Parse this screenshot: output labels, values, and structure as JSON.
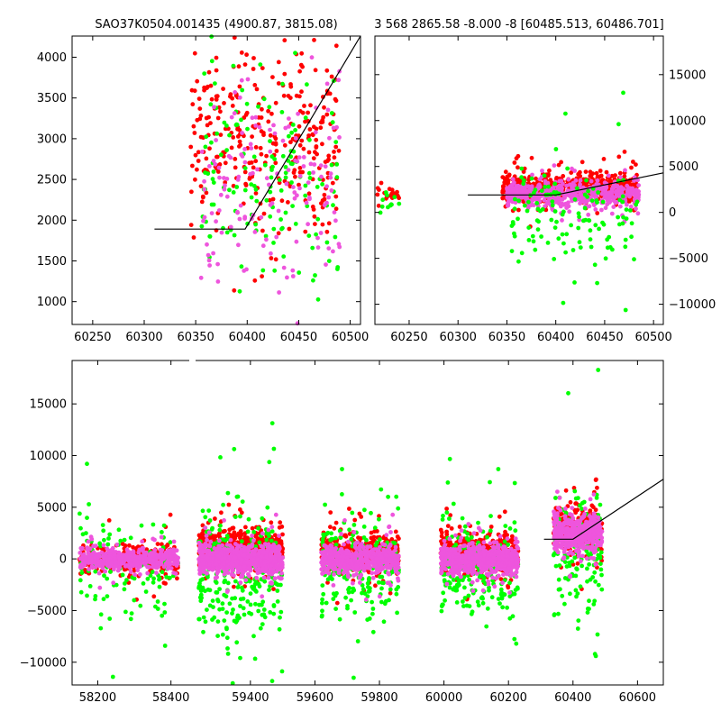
{
  "colors": {
    "background": "#ffffff",
    "axes": "#000000",
    "model_line": "#000000",
    "series_red": "#ff0000",
    "series_green": "#00ff00",
    "series_magenta": "#ee55dd"
  },
  "chart_data": [
    {
      "type": "scatter",
      "panel": "top-left",
      "title": "SAO37K0504.001435 (4900.87, 3815.08)",
      "xlabel": "",
      "ylabel": "",
      "xlim": [
        60230,
        60510
      ],
      "ylim": [
        720,
        4260
      ],
      "x_ticks": [
        60250,
        60300,
        60350,
        60400,
        60450,
        60500
      ],
      "y_ticks": [
        1000,
        1500,
        2000,
        2500,
        3000,
        3500,
        4000
      ],
      "y_axis_side": "left",
      "model_line": {
        "x": [
          60310,
          60398,
          60510
        ],
        "y": [
          1890,
          1890,
          4260
        ]
      },
      "series": [
        {
          "color": "#ff0000",
          "x_range": [
            60345,
            60490
          ],
          "y_center": 3000,
          "y_spread": 900,
          "n": 320
        },
        {
          "color": "#00ff00",
          "x_range": [
            60355,
            60490
          ],
          "y_center": 2400,
          "y_spread": 1100,
          "n": 150
        },
        {
          "color": "#ee55dd",
          "x_range": [
            60355,
            60490
          ],
          "y_center": 2500,
          "y_spread": 1100,
          "n": 150
        }
      ]
    },
    {
      "type": "scatter",
      "panel": "top-right",
      "title": "3 568 2865.58 -8.000 -8 [60485.513, 60486.701]",
      "xlabel": "",
      "ylabel": "",
      "xlim": [
        60215,
        60510
      ],
      "ylim": [
        -12200,
        19200
      ],
      "x_ticks": [
        60250,
        60300,
        60350,
        60400,
        60450,
        60500
      ],
      "y_ticks": [
        -10000,
        -5000,
        0,
        5000,
        10000,
        15000
      ],
      "y_axis_side": "right",
      "model_line": {
        "x": [
          60310,
          60400,
          60510
        ],
        "y": [
          1900,
          1900,
          4300
        ]
      },
      "series": [
        {
          "color": "#ff0000",
          "x_range": [
            60345,
            60485
          ],
          "y_center": 2800,
          "y_spread": 1400,
          "n": 520
        },
        {
          "color": "#ee55dd",
          "x_range": [
            60350,
            60485
          ],
          "y_center": 2000,
          "y_spread": 1200,
          "n": 520
        },
        {
          "color": "#00ff00",
          "x_range": [
            60355,
            60485
          ],
          "y_center": 0,
          "y_spread": 5000,
          "n": 130
        },
        {
          "color": "#ff0000",
          "x_range": [
            60215,
            60240
          ],
          "y_center": 2000,
          "y_spread": 600,
          "n": 25
        },
        {
          "color": "#00ff00",
          "x_range": [
            60215,
            60240
          ],
          "y_center": 1000,
          "y_spread": 900,
          "n": 12
        }
      ]
    },
    {
      "type": "scatter",
      "panel": "bottom",
      "title": "",
      "xlabel": "",
      "ylabel": "",
      "xlim": [
        58130,
        60680
      ],
      "ylim": [
        -12200,
        19200
      ],
      "x_ticks": [
        58200,
        58400,
        59400,
        59600,
        59800,
        60000,
        60200,
        60400,
        60600
      ],
      "y_ticks": [
        -10000,
        -5000,
        0,
        5000,
        10000,
        15000
      ],
      "y_axis_side": "left",
      "axis_break": {
        "left_segment_xlim": [
          58130,
          58450
        ],
        "right_segment_xlim": [
          59230,
          60680
        ]
      },
      "model_line": {
        "x": [
          60310,
          60400,
          60680
        ],
        "y": [
          1900,
          1900,
          7700
        ]
      },
      "series": [
        {
          "color": "#ff0000",
          "x_range": [
            58150,
            58420
          ],
          "y_center": 0,
          "y_spread": 1200,
          "n": 260
        },
        {
          "color": "#00ff00",
          "x_range": [
            58150,
            58420
          ],
          "y_center": -800,
          "y_spread": 4000,
          "n": 120
        },
        {
          "color": "#ee55dd",
          "x_range": [
            58150,
            58420
          ],
          "y_center": 0,
          "y_spread": 900,
          "n": 420
        },
        {
          "color": "#ff0000",
          "x_range": [
            59240,
            59500
          ],
          "y_center": 1100,
          "y_spread": 1600,
          "n": 520
        },
        {
          "color": "#00ff00",
          "x_range": [
            59240,
            59500
          ],
          "y_center": -1200,
          "y_spread": 5500,
          "n": 300
        },
        {
          "color": "#ee55dd",
          "x_range": [
            59240,
            59500
          ],
          "y_center": 0,
          "y_spread": 1200,
          "n": 700
        },
        {
          "color": "#ff0000",
          "x_range": [
            59620,
            59860
          ],
          "y_center": 700,
          "y_spread": 1600,
          "n": 380
        },
        {
          "color": "#00ff00",
          "x_range": [
            59620,
            59860
          ],
          "y_center": -800,
          "y_spread": 4500,
          "n": 200
        },
        {
          "color": "#ee55dd",
          "x_range": [
            59620,
            59860
          ],
          "y_center": 0,
          "y_spread": 1200,
          "n": 500
        },
        {
          "color": "#ff0000",
          "x_range": [
            59990,
            60230
          ],
          "y_center": 600,
          "y_spread": 1700,
          "n": 400
        },
        {
          "color": "#00ff00",
          "x_range": [
            59990,
            60230
          ],
          "y_center": -1000,
          "y_spread": 4500,
          "n": 200
        },
        {
          "color": "#ee55dd",
          "x_range": [
            59990,
            60230
          ],
          "y_center": 0,
          "y_spread": 1300,
          "n": 550
        },
        {
          "color": "#ff0000",
          "x_range": [
            60340,
            60490
          ],
          "y_center": 3000,
          "y_spread": 1800,
          "n": 350
        },
        {
          "color": "#00ff00",
          "x_range": [
            60340,
            60490
          ],
          "y_center": 500,
          "y_spread": 5000,
          "n": 140
        },
        {
          "color": "#ee55dd",
          "x_range": [
            60340,
            60490
          ],
          "y_center": 2500,
          "y_spread": 1600,
          "n": 380
        }
      ]
    }
  ]
}
